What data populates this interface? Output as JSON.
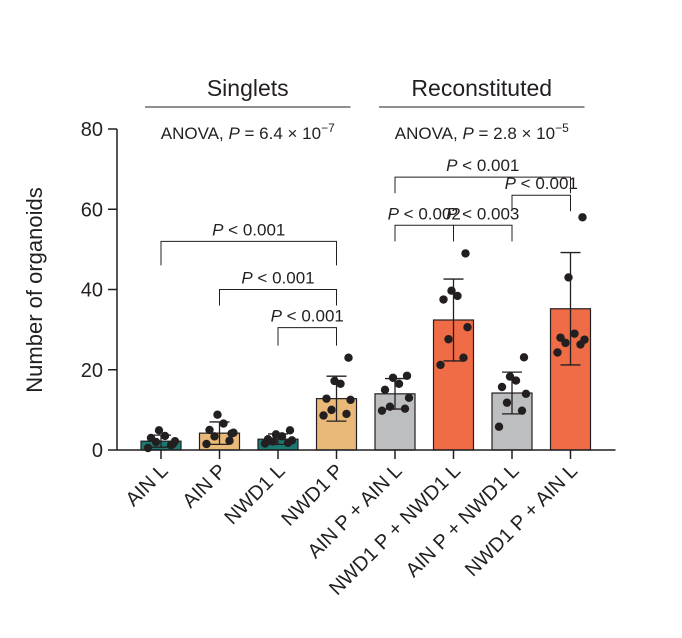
{
  "chart_data": {
    "type": "bar",
    "ylabel": "Number of organoids",
    "ylim": [
      0,
      80
    ],
    "yticks": [
      0,
      20,
      40,
      60,
      80
    ],
    "categories": [
      "AIN L",
      "AIN P",
      "NWD1 L",
      "NWD1 P",
      "AIN P + AIN L",
      "NWD1 P + NWD1 L",
      "AIN P + NWD1 L",
      "NWD1 P + AIN L"
    ],
    "colors": [
      "#1a7a72",
      "#e8b978",
      "#1a7a72",
      "#e8b978",
      "#bcbec0",
      "#ef6c47",
      "#bcbec0",
      "#ef6c47"
    ],
    "means": [
      2.2,
      4.2,
      2.7,
      12.8,
      14.0,
      32.4,
      14.2,
      35.2
    ],
    "sd": [
      1.5,
      2.8,
      1.3,
      5.6,
      3.8,
      10.2,
      5.2,
      14.0
    ],
    "points": [
      [
        0.5,
        1.2,
        2.0,
        2.2,
        3.0,
        3.5,
        4.9,
        1.5
      ],
      [
        1.5,
        2.3,
        3.4,
        4.3,
        5.0,
        6.6,
        8.8,
        4.1
      ],
      [
        1.6,
        1.8,
        2.1,
        2.4,
        2.7,
        3.4,
        3.9,
        4.9
      ],
      [
        8.6,
        9.0,
        10.0,
        12.5,
        12.8,
        16.5,
        17.2,
        23.0
      ],
      [
        9.8,
        10.3,
        10.8,
        13.0,
        15.0,
        16.5,
        18.0,
        18.5
      ],
      [
        21.2,
        23.0,
        27.6,
        30.6,
        37.5,
        38.4,
        39.7,
        49.0
      ],
      [
        5.8,
        9.8,
        11.8,
        14.0,
        15.7,
        17.3,
        18.3,
        23.1
      ],
      [
        24.3,
        26.3,
        26.7,
        27.5,
        28.0,
        29.0,
        43.0,
        58.0
      ]
    ],
    "groups": [
      {
        "title": "Singlets",
        "anova_prefix": "ANOVA, ",
        "anova_value": " = 6.4 × 10",
        "anova_exp": "−7",
        "p": "P",
        "from": 0,
        "to": 3
      },
      {
        "title": "Reconstituted",
        "anova_prefix": "ANOVA, ",
        "anova_value": " = 2.8 × 10",
        "anova_exp": "−5",
        "p": "P",
        "from": 4,
        "to": 7
      }
    ],
    "comparisons": [
      {
        "from": 0,
        "to": 3,
        "label": "P < 0.001",
        "y": 52,
        "end_y": 46
      },
      {
        "from": 1,
        "to": 3,
        "label": "P < 0.001",
        "y": 40,
        "end_y": 36
      },
      {
        "from": 2,
        "to": 3,
        "label": "P < 0.001",
        "y": 30.5,
        "end_y": 26
      },
      {
        "from": 4,
        "to": 5,
        "label": "P < 0.002",
        "y": 56,
        "end_y": 52
      },
      {
        "from": 5,
        "to": 6,
        "label": "P < 0.003",
        "y": 56,
        "end_y": 52
      },
      {
        "from": 4,
        "to": 7,
        "label": "P < 0.001",
        "y": 68,
        "end_y": 64
      },
      {
        "from": 6,
        "to": 7,
        "label": "P < 0.001",
        "y": 63.5,
        "end_y": 59.5
      }
    ]
  }
}
